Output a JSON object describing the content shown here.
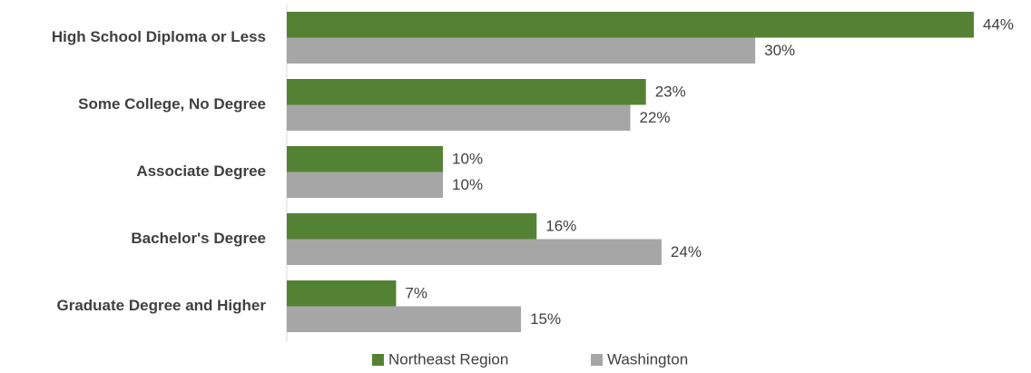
{
  "chart_data": {
    "type": "bar",
    "orientation": "horizontal",
    "categories": [
      "High School Diploma or Less",
      "Some College, No Degree",
      "Associate Degree",
      "Bachelor's Degree",
      "Graduate Degree and Higher"
    ],
    "series": [
      {
        "name": "Northeast Region",
        "color": "#548235",
        "values": [
          44,
          23,
          10,
          16,
          7
        ],
        "value_labels": [
          "44%",
          "23%",
          "10%",
          "16%",
          "7%"
        ]
      },
      {
        "name": "Washington",
        "color": "#a6a6a6",
        "values": [
          30,
          22,
          10,
          24,
          15
        ],
        "value_labels": [
          "30%",
          "22%",
          "10%",
          "24%",
          "15%"
        ]
      }
    ],
    "legend": "bottom"
  }
}
